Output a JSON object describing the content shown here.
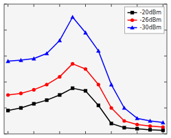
{
  "chart_data": {
    "type": "line",
    "x": [
      0,
      1,
      2,
      3,
      4,
      5,
      6,
      7,
      8,
      9,
      10,
      11,
      12
    ],
    "series": [
      {
        "name": "-20dBm",
        "color": "#000000",
        "marker": "square",
        "values": [
          4.5,
          5.0,
          5.8,
          6.5,
          7.5,
          8.8,
          8.3,
          5.5,
          2.0,
          1.2,
          1.0,
          0.8,
          0.7
        ]
      },
      {
        "name": "-26dBm",
        "color": "#ff0000",
        "marker": "circle",
        "values": [
          7.5,
          7.8,
          8.5,
          9.5,
          11.0,
          13.5,
          12.5,
          9.5,
          5.0,
          2.5,
          1.8,
          1.5,
          1.3
        ]
      },
      {
        "name": "-30dBm",
        "color": "#0000ff",
        "marker": "triangle",
        "values": [
          14.0,
          14.2,
          14.5,
          15.5,
          18.0,
          22.5,
          19.5,
          16.0,
          9.5,
          5.0,
          3.0,
          2.5,
          2.2
        ]
      }
    ],
    "xlim": [
      -0.3,
      12.3
    ],
    "ylim": [
      0,
      25
    ],
    "xticks": [
      0,
      2,
      4,
      6,
      8,
      10,
      12
    ],
    "yticks": [
      0,
      5,
      10,
      15,
      20,
      25
    ],
    "tick_labels": false,
    "grid": false,
    "legend": "upper right"
  }
}
